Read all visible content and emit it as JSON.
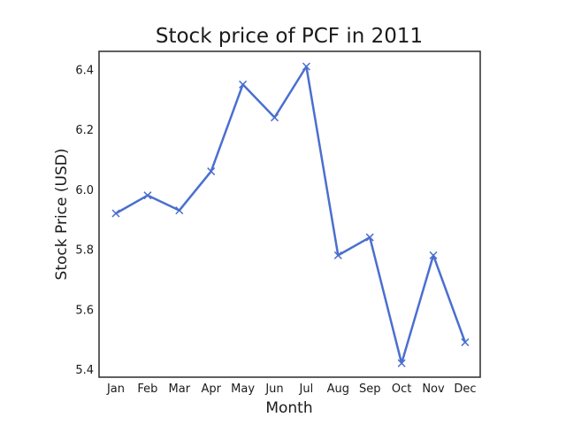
{
  "chart_data": {
    "type": "line",
    "title": "Stock price of PCF in 2011",
    "xlabel": "Month",
    "ylabel": "Stock Price (USD)",
    "categories": [
      "Jan",
      "Feb",
      "Mar",
      "Apr",
      "May",
      "Jun",
      "Jul",
      "Aug",
      "Sep",
      "Oct",
      "Nov",
      "Dec"
    ],
    "series": [
      {
        "values": [
          5.92,
          5.98,
          5.93,
          6.06,
          6.35,
          6.24,
          6.41,
          5.78,
          5.84,
          5.42,
          5.78,
          5.49
        ],
        "color": "#4a6fcf",
        "marker": "x"
      }
    ],
    "yticks": [
      5.4,
      5.6,
      5.8,
      6.0,
      6.2,
      6.4
    ],
    "ytick_labels": [
      "5.4",
      "5.6",
      "5.8",
      "6.0",
      "6.2",
      "6.4"
    ],
    "ylim": [
      5.38,
      6.44
    ],
    "grid": false,
    "legend": "none"
  }
}
